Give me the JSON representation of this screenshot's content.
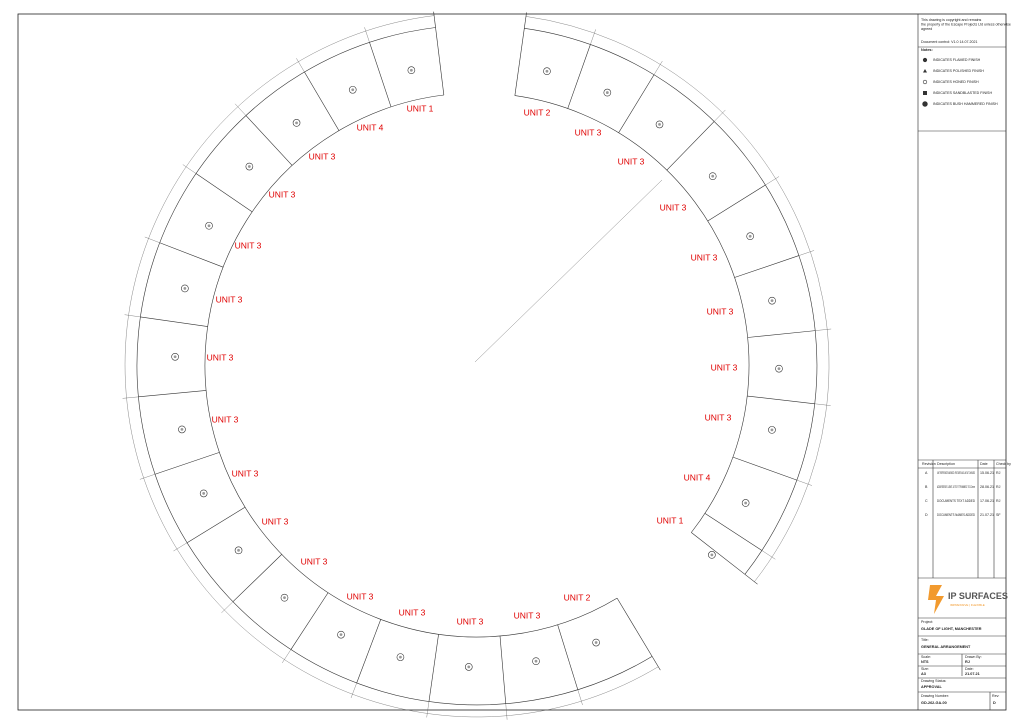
{
  "drawing": {
    "units_left": [
      "UNIT 1",
      "UNIT 4",
      "UNIT 3",
      "UNIT 3",
      "UNIT 3",
      "UNIT 3",
      "UNIT 3",
      "UNIT 3",
      "UNIT 3",
      "UNIT 3",
      "UNIT 3",
      "UNIT 3",
      "UNIT 3",
      "UNIT 3",
      "UNIT 3",
      "UNIT 2"
    ],
    "units_right": [
      "UNIT 2",
      "UNIT 3",
      "UNIT 3",
      "UNIT 3",
      "UNIT 3",
      "UNIT 3",
      "UNIT 3",
      "UNIT 3",
      "UNIT 4",
      "UNIT 1"
    ]
  },
  "title_block": {
    "copyright": [
      "This drawing is copyright and remains",
      "the property of the Escape Projects Ltd unless otherwise",
      "agreed"
    ],
    "document_control": "Document control: V1.0 14.07.2021",
    "notes_title": "Notes:",
    "legend": [
      "INDICATES FLAMED FINISH",
      "INDICATES POLISHED FINISH",
      "INDICATES HONED FINISH",
      "INDICATES SANDBLASTED FINISH",
      "INDICATES BUSH HAMMERED FINISH"
    ],
    "revision_header": [
      "Revision",
      "Description",
      "Date",
      "Check by"
    ],
    "revisions": [
      [
        "A",
        "UNIT REFERENCES AMENDED. FEATURES AND LAYOUT CHANGED",
        "15.06.21",
        "RJ"
      ],
      [
        "B",
        "ADDRESSES LENT & TEXT TRIMMED TO 12mm",
        "28.06.21",
        "RJ"
      ],
      [
        "C",
        "DOCUMENTS TEXT ADDED",
        "17.06.21",
        "RJ"
      ],
      [
        "D",
        "DOCUMENTS NAMES ADDED",
        "21.07.21",
        "SF"
      ]
    ],
    "logo": "IP SURFACES",
    "logo_sub": "IMPRESSIVE | FLEXIBLE",
    "project_label": "Project:",
    "project": "GLADE OF LIGHT, MANCHESTER",
    "title_label": "Title:",
    "title": "GENERAL ARRANGEMENT",
    "scale_label": "Scale:",
    "scale": "NTS",
    "drawn_label": "Drawn By:",
    "drawn": "RJ",
    "size_label": "Size:",
    "size": "A3",
    "date_label": "Date:",
    "date": "21.07.21",
    "status_label": "Drawing Status:",
    "status": "APPROVAL",
    "number_label": "Drawing Number:",
    "number": "GD-262-GA-00",
    "rev_label": "Rev:",
    "rev": "D"
  }
}
